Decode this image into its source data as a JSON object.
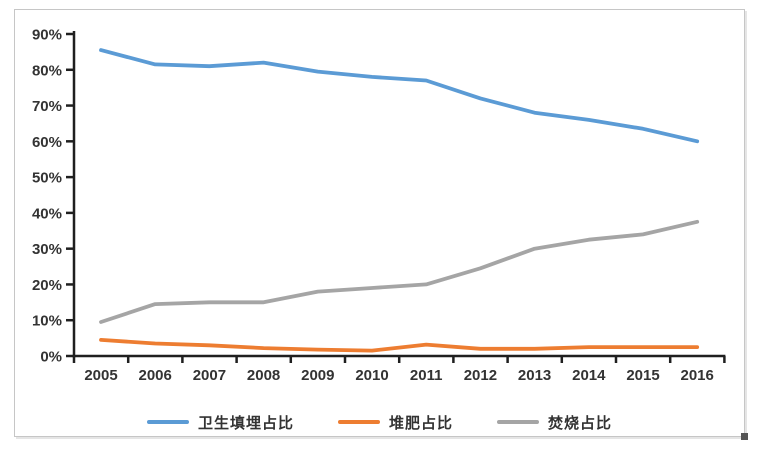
{
  "chart_data": {
    "type": "line",
    "title": "",
    "xlabel": "",
    "ylabel": "",
    "categories": [
      "2005",
      "2006",
      "2007",
      "2008",
      "2009",
      "2010",
      "2011",
      "2012",
      "2013",
      "2014",
      "2015",
      "2016"
    ],
    "series": [
      {
        "key": "landfill",
        "name": "卫生填埋占比",
        "color": "#5B9BD5",
        "values": [
          85.5,
          81.5,
          81,
          82,
          79.5,
          78,
          77,
          72,
          68,
          66,
          63.5,
          60
        ]
      },
      {
        "key": "compost",
        "name": "堆肥占比",
        "color": "#ED7D31",
        "values": [
          4.5,
          3.5,
          3,
          2.2,
          1.8,
          1.5,
          3.2,
          2,
          2,
          2.5,
          2.5,
          2.5
        ]
      },
      {
        "key": "incineration",
        "name": "焚烧占比",
        "color": "#A5A5A5",
        "values": [
          9.5,
          14.5,
          15,
          15,
          18,
          19,
          20,
          24.5,
          30,
          32.5,
          34,
          37.5
        ]
      }
    ],
    "ylim": [
      0,
      90
    ],
    "ytick_step": 10,
    "ytick_labels": [
      "0%",
      "10%",
      "20%",
      "30%",
      "40%",
      "50%",
      "60%",
      "70%",
      "80%",
      "90%"
    ],
    "grid": false,
    "legend_position": "bottom"
  },
  "colors": {
    "axis": "#1f1f1f",
    "tick_text": "#333333",
    "frame_border": "#c6c6c6",
    "background": "#ffffff"
  }
}
